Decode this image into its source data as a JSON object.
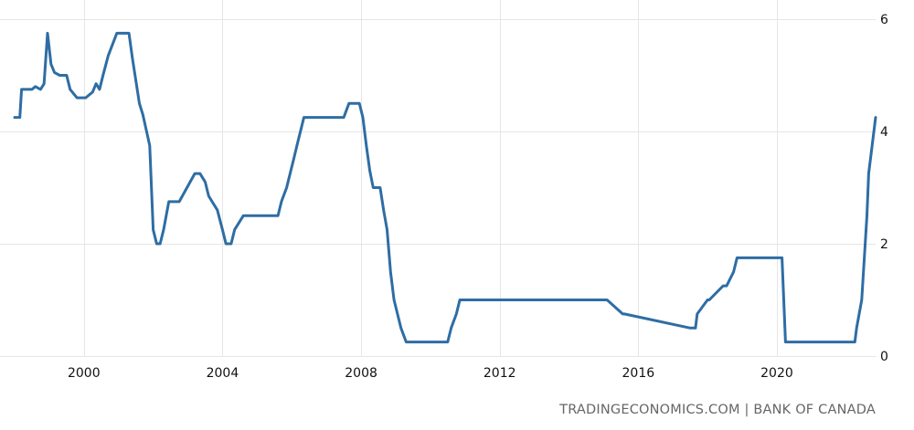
{
  "source_label": "TRADINGECONOMICS.COM | BANK OF CANADA",
  "colors": {
    "line": "#2e6da4",
    "grid": "#e6e6e6",
    "tick_text": "#111111",
    "source_text": "#666666"
  },
  "chart_data": {
    "type": "line",
    "title": "",
    "xlabel": "",
    "ylabel": "",
    "y_axis_position": "right",
    "grid": true,
    "xlim": [
      1998.0,
      2022.85
    ],
    "ylim": [
      0,
      6
    ],
    "x_ticks": [
      2000,
      2004,
      2008,
      2012,
      2016,
      2020
    ],
    "x_tick_labels": [
      "2000",
      "2004",
      "2008",
      "2012",
      "2016",
      "2020"
    ],
    "y_ticks": [
      0,
      2,
      4,
      6
    ],
    "y_tick_labels": [
      "0",
      "2",
      "4",
      "6"
    ],
    "series": [
      {
        "x": [
          1998.0,
          1998.15,
          1998.2,
          1998.5,
          1998.6,
          1998.75,
          1998.85,
          1998.95,
          1999.05,
          1999.15,
          1999.3,
          1999.5,
          1999.6,
          1999.8,
          1999.9,
          2000.05,
          2000.15,
          2000.25,
          2000.35,
          2000.45,
          2000.55,
          2000.7,
          2000.95,
          2001.05,
          2001.15,
          2001.25,
          2001.3,
          2001.4,
          2001.5,
          2001.6,
          2001.7,
          2001.9,
          2002.0,
          2002.1,
          2002.2,
          2002.3,
          2002.45,
          2002.6,
          2002.75,
          2003.2,
          2003.35,
          2003.5,
          2003.6,
          2003.7,
          2003.85,
          2004.0,
          2004.1,
          2004.25,
          2004.35,
          2004.6,
          2004.7,
          2004.8,
          2005.6,
          2005.7,
          2005.85,
          2005.95,
          2006.05,
          2006.15,
          2006.25,
          2006.35,
          2006.5,
          2007.5,
          2007.65,
          2007.95,
          2008.05,
          2008.15,
          2008.25,
          2008.35,
          2008.55,
          2008.65,
          2008.75,
          2008.85,
          2008.95,
          2009.15,
          2009.3,
          2009.4,
          2010.5,
          2010.6,
          2010.75,
          2010.85,
          2014.95,
          2015.1,
          2015.55,
          2015.6,
          2017.5,
          2017.55,
          2017.65,
          2017.7,
          2018.0,
          2018.05,
          2018.45,
          2018.55,
          2018.75,
          2018.85,
          2020.05,
          2020.15,
          2020.25,
          2022.2,
          2022.25,
          2022.3,
          2022.45,
          2022.5,
          2022.6,
          2022.65,
          2022.75,
          2022.85
        ],
        "values": [
          4.25,
          4.25,
          4.75,
          4.75,
          4.8,
          4.75,
          4.85,
          5.75,
          5.2,
          5.05,
          5.0,
          5.0,
          4.75,
          4.6,
          4.6,
          4.6,
          4.65,
          4.7,
          4.85,
          4.75,
          5.0,
          5.35,
          5.75,
          5.75,
          5.75,
          5.75,
          5.75,
          5.3,
          4.9,
          4.5,
          4.3,
          3.75,
          2.25,
          2.0,
          2.0,
          2.25,
          2.75,
          2.75,
          2.75,
          3.25,
          3.25,
          3.1,
          2.85,
          2.75,
          2.6,
          2.25,
          2.0,
          2.0,
          2.25,
          2.5,
          2.5,
          2.5,
          2.5,
          2.75,
          3.0,
          3.25,
          3.5,
          3.75,
          4.0,
          4.25,
          4.25,
          4.25,
          4.5,
          4.5,
          4.25,
          3.75,
          3.3,
          3.0,
          3.0,
          2.6,
          2.25,
          1.5,
          1.0,
          0.5,
          0.25,
          0.25,
          0.25,
          0.5,
          0.75,
          1.0,
          1.0,
          1.0,
          0.75,
          0.75,
          0.5,
          0.5,
          0.5,
          0.75,
          1.0,
          1.0,
          1.25,
          1.25,
          1.5,
          1.75,
          1.75,
          1.75,
          0.25,
          0.25,
          0.25,
          0.5,
          1.0,
          1.5,
          2.5,
          3.25,
          3.75,
          4.25
        ]
      }
    ]
  }
}
